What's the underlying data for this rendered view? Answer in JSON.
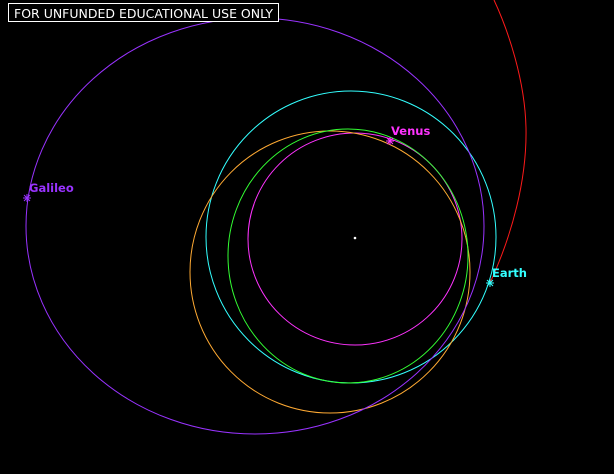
{
  "banner": {
    "text": "FOR UNFUNDED EDUCATIONAL USE ONLY"
  },
  "sun": {
    "color": "#ffffff"
  },
  "bodies": {
    "venus": {
      "label": "Venus",
      "color": "#ff33ff"
    },
    "earth": {
      "label": "Earth",
      "color": "#33ffff"
    },
    "galileo": {
      "label": "Galileo",
      "color": "#9933ff"
    }
  },
  "orbits": {
    "venus": {
      "color": "#ff33ff"
    },
    "earth": {
      "color": "#33ffff"
    },
    "transfer_1": {
      "color": "#ffaa33"
    },
    "transfer_2": {
      "color": "#33ff33"
    },
    "galileo": {
      "color": "#9933ff"
    },
    "departure": {
      "color": "#ff1a1a"
    }
  }
}
